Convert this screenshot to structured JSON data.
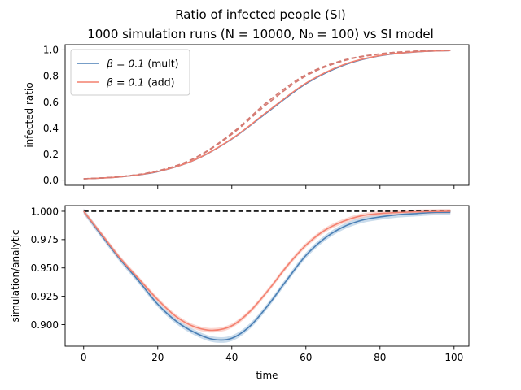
{
  "figure": {
    "title_line1": "Ratio of infected people (SI)",
    "title_line2": "1000 simulation runs (N = 10000, N₀ = 100) vs SI model",
    "colors": {
      "mult": "#4a7fb5",
      "add": "#f4806f",
      "dashed_top": "#d47a72",
      "reference": "#000000",
      "band_mult": "#9ebfdc",
      "band_add": "#f7b6ab"
    }
  },
  "chart_data": [
    {
      "type": "line",
      "ylabel": "infected ratio",
      "xlabel": "",
      "xlim": [
        -5,
        104
      ],
      "ylim": [
        -0.04,
        1.04
      ],
      "xticks": [
        0,
        20,
        40,
        60,
        80,
        100
      ],
      "yticks": [
        0.0,
        0.2,
        0.4,
        0.6,
        0.8,
        1.0
      ],
      "ytick_labels": [
        "0.0",
        "0.2",
        "0.4",
        "0.6",
        "0.8",
        "1.0"
      ],
      "show_xtick_labels": false,
      "legend": {
        "placement": "top-left",
        "entries": [
          {
            "series": "mult",
            "label_prefix": "β = 0.1",
            "label_suffix": " (mult)"
          },
          {
            "series": "add",
            "label_prefix": "β = 0.1",
            "label_suffix": " (add)"
          }
        ]
      },
      "x": [
        0,
        10,
        20,
        30,
        40,
        50,
        60,
        70,
        80,
        90,
        99
      ],
      "series": [
        {
          "name": "β = 0.1 (mult)",
          "key": "mult",
          "style": "solid",
          "values": [
            0.01,
            0.025,
            0.065,
            0.155,
            0.315,
            0.53,
            0.74,
            0.88,
            0.955,
            0.985,
            0.995
          ]
        },
        {
          "name": "β = 0.1 (add)",
          "key": "add",
          "style": "solid",
          "values": [
            0.01,
            0.025,
            0.066,
            0.156,
            0.318,
            0.535,
            0.745,
            0.885,
            0.957,
            0.986,
            0.995
          ]
        },
        {
          "name": "SI model (mult)",
          "key": "dashed_top",
          "style": "dashed",
          "values": [
            0.01,
            0.027,
            0.07,
            0.168,
            0.352,
            0.595,
            0.8,
            0.915,
            0.968,
            0.99,
            0.997
          ]
        },
        {
          "name": "SI model (add)",
          "key": "dashed_top",
          "style": "dashed",
          "values": [
            0.01,
            0.027,
            0.071,
            0.17,
            0.36,
            0.61,
            0.81,
            0.92,
            0.97,
            0.991,
            0.997
          ]
        }
      ]
    },
    {
      "type": "line",
      "ylabel": "simulation/analytic",
      "xlabel": "time",
      "xlim": [
        -5,
        104
      ],
      "ylim": [
        0.881,
        1.005
      ],
      "xticks": [
        0,
        20,
        40,
        60,
        80,
        100
      ],
      "xtick_labels": [
        "0",
        "20",
        "40",
        "60",
        "80",
        "100"
      ],
      "yticks": [
        0.9,
        0.925,
        0.95,
        0.975,
        1.0
      ],
      "ytick_labels": [
        "0.900",
        "0.925",
        "0.950",
        "0.975",
        "1.000"
      ],
      "reference_line": {
        "y": 1.0,
        "x": [
          0,
          99
        ],
        "style": "dashed"
      },
      "x": [
        0,
        5,
        10,
        15,
        20,
        25,
        30,
        35,
        40,
        45,
        50,
        55,
        60,
        65,
        70,
        75,
        80,
        85,
        90,
        95,
        99
      ],
      "series": [
        {
          "name": "β = 0.1 (mult)",
          "key": "mult",
          "band": 0.0025,
          "values": [
            1.0,
            0.978,
            0.957,
            0.938,
            0.918,
            0.903,
            0.893,
            0.887,
            0.888,
            0.899,
            0.918,
            0.94,
            0.961,
            0.976,
            0.986,
            0.992,
            0.995,
            0.997,
            0.998,
            0.999,
            0.999
          ]
        },
        {
          "name": "β = 0.1 (add)",
          "key": "add",
          "band": 0.002,
          "values": [
            1.0,
            0.979,
            0.958,
            0.94,
            0.922,
            0.907,
            0.898,
            0.895,
            0.899,
            0.912,
            0.931,
            0.952,
            0.97,
            0.983,
            0.991,
            0.996,
            0.998,
            0.999,
            0.9995,
            0.9998,
            1.0
          ]
        }
      ]
    }
  ]
}
